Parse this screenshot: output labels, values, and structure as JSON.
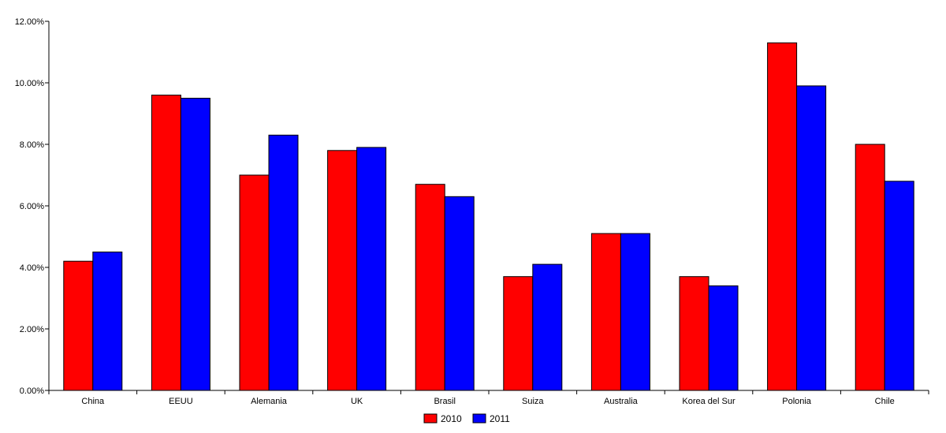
{
  "chart_data": {
    "type": "bar",
    "categories": [
      "China",
      "EEUU",
      "Alemania",
      "UK",
      "Brasil",
      "Suiza",
      "Australia",
      "Korea del Sur",
      "Polonia",
      "Chile"
    ],
    "series": [
      {
        "name": "2010",
        "values": [
          4.2,
          9.6,
          7.0,
          7.8,
          6.7,
          3.7,
          5.1,
          3.7,
          11.3,
          8.0
        ],
        "color": "#ff0000"
      },
      {
        "name": "2011",
        "values": [
          4.5,
          9.5,
          8.3,
          7.9,
          6.3,
          4.1,
          5.1,
          3.4,
          9.9,
          6.8
        ],
        "color": "#0000ff"
      }
    ],
    "yticks": [
      "0.00%",
      "2.00%",
      "4.00%",
      "6.00%",
      "8.00%",
      "10.00%",
      "12.00%"
    ],
    "ylim": [
      0,
      12
    ],
    "grid": false,
    "legend_position": "bottom-center",
    "title": "",
    "xlabel": "",
    "ylabel": ""
  }
}
